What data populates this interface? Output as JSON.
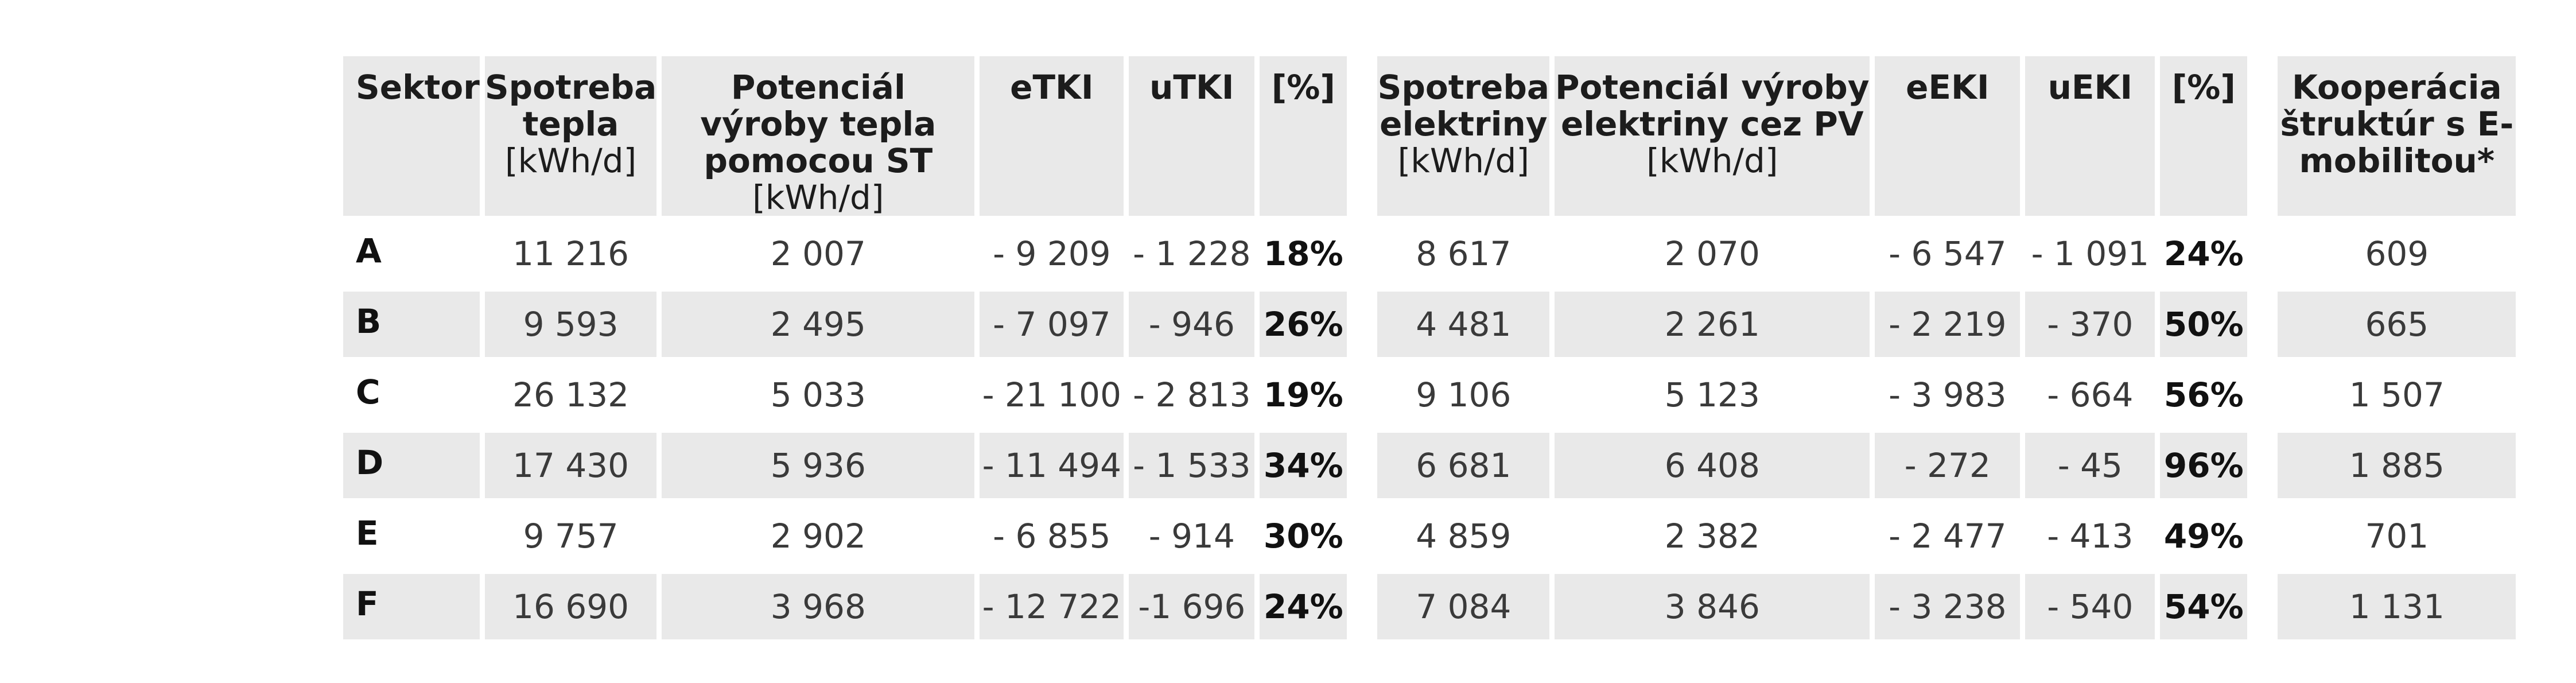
{
  "headers": {
    "sektor": "Sektor",
    "spotreba_tepla": {
      "title": "Spotreba tepla",
      "unit": "[kWh/d]"
    },
    "potencial_st": {
      "title": "Potenciál výroby tepla pomocou ST",
      "unit": "[kWh/d]"
    },
    "etki": "eTKI",
    "utki": "uTKI",
    "pct1": "[%]",
    "spotreba_elektriny": {
      "title": "Spotreba elektriny",
      "unit": "[kWh/d]"
    },
    "potencial_pv": {
      "title": "Potenciál výroby elektriny cez PV",
      "unit": "[kWh/d]"
    },
    "eeki": "eEKI",
    "ueki": "uEKI",
    "pct2": "[%]",
    "kooperacia": "Kooperácia štruktúr s E-mobilitou*"
  },
  "rows": [
    {
      "sektor": "A",
      "spotreba_tepla": "11 216",
      "potencial_st": "2 007",
      "etki": "- 9 209",
      "utki": "- 1 228",
      "pct1": "18%",
      "spotreba_elektriny": "8 617",
      "potencial_pv": "2 070",
      "eeki": "- 6 547",
      "ueki": "- 1 091",
      "pct2": "24%",
      "kooperacia": "609"
    },
    {
      "sektor": "B",
      "spotreba_tepla": "9 593",
      "potencial_st": "2 495",
      "etki": "- 7 097",
      "utki": "- 946",
      "pct1": "26%",
      "spotreba_elektriny": "4 481",
      "potencial_pv": "2 261",
      "eeki": "- 2 219",
      "ueki": "- 370",
      "pct2": "50%",
      "kooperacia": "665"
    },
    {
      "sektor": "C",
      "spotreba_tepla": "26 132",
      "potencial_st": "5 033",
      "etki": "- 21 100",
      "utki": "- 2 813",
      "pct1": "19%",
      "spotreba_elektriny": "9 106",
      "potencial_pv": "5 123",
      "eeki": "- 3 983",
      "ueki": "- 664",
      "pct2": "56%",
      "kooperacia": "1 507"
    },
    {
      "sektor": "D",
      "spotreba_tepla": "17 430",
      "potencial_st": "5 936",
      "etki": "- 11 494",
      "utki": "- 1 533",
      "pct1": "34%",
      "spotreba_elektriny": "6 681",
      "potencial_pv": "6 408",
      "eeki": "- 272",
      "ueki": "- 45",
      "pct2": "96%",
      "kooperacia": "1 885"
    },
    {
      "sektor": "E",
      "spotreba_tepla": "9 757",
      "potencial_st": "2 902",
      "etki": "- 6 855",
      "utki": "- 914",
      "pct1": "30%",
      "spotreba_elektriny": "4 859",
      "potencial_pv": "2 382",
      "eeki": "- 2 477",
      "ueki": "- 413",
      "pct2": "49%",
      "kooperacia": "701"
    },
    {
      "sektor": "F",
      "spotreba_tepla": "16 690",
      "potencial_st": "3 968",
      "etki": "- 12 722",
      "utki": "-1 696",
      "pct1": "24%",
      "spotreba_elektriny": "7 084",
      "potencial_pv": "3 846",
      "eeki": "- 3 238",
      "ueki": "- 540",
      "pct2": "54%",
      "kooperacia": "1 131"
    }
  ]
}
